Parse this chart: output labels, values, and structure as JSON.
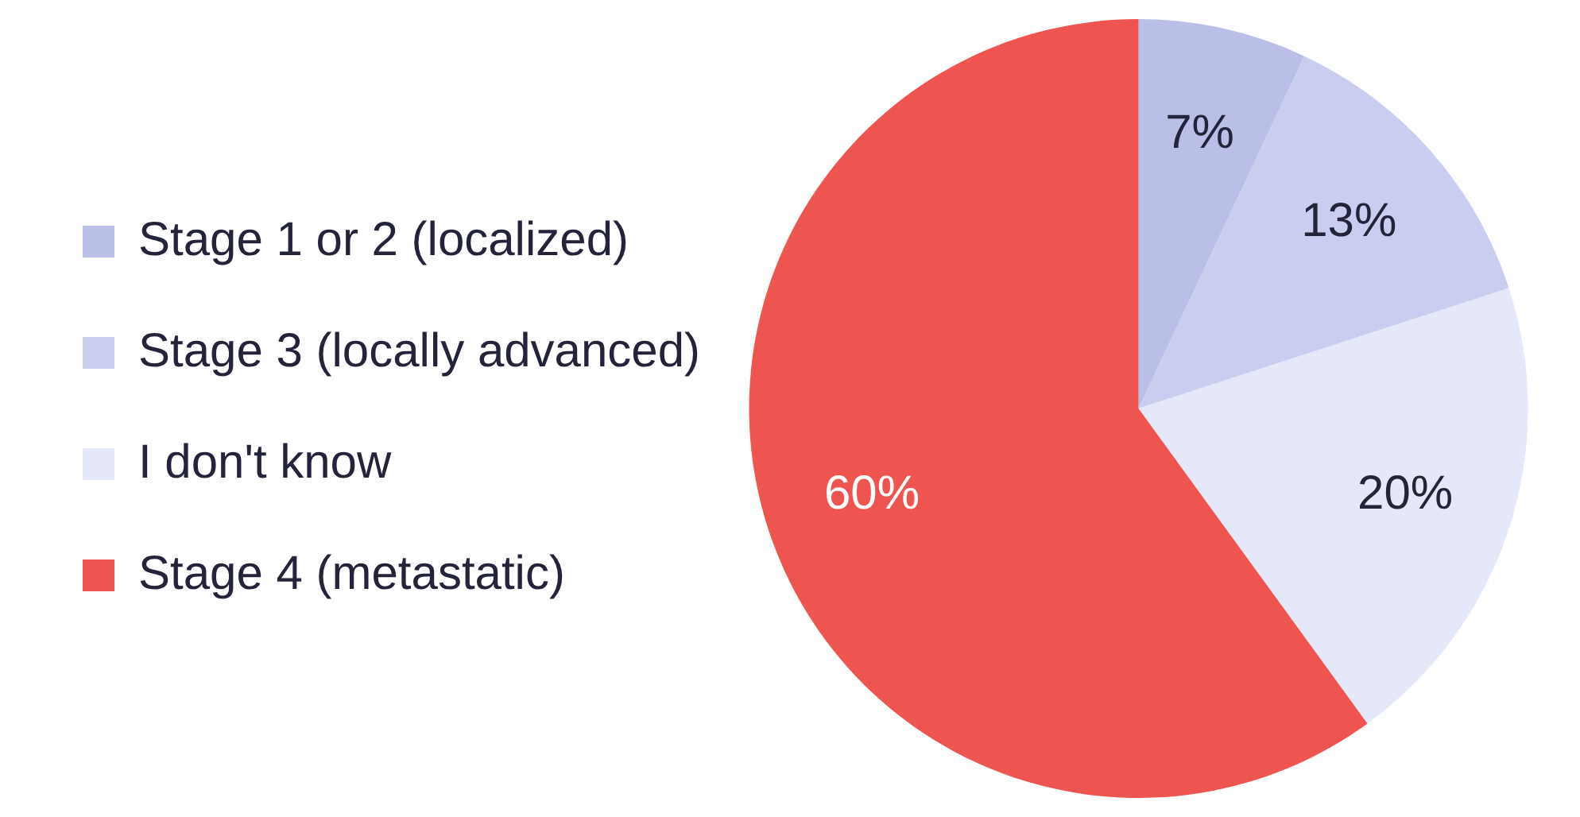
{
  "chart_data": {
    "type": "pie",
    "categories": [
      "Stage 1 or 2 (localized)",
      "Stage 3 (locally advanced)",
      "I don't know",
      "Stage 4 (metastatic)"
    ],
    "values": [
      7,
      13,
      20,
      60
    ],
    "colors": [
      "#b9bfe6",
      "#c9cef1",
      "#e4e8f9",
      "#ee5450"
    ],
    "value_labels": [
      "7%",
      "13%",
      "20%",
      "60%"
    ],
    "legend": "left"
  }
}
